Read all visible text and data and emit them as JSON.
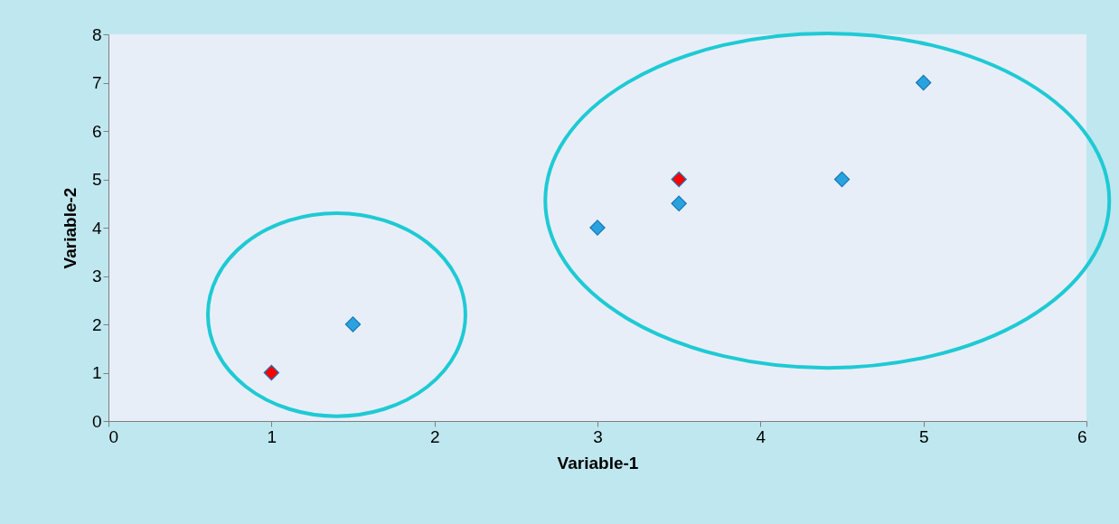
{
  "chart_data": {
    "type": "scatter",
    "xlabel": "Variable-1",
    "ylabel": "Variable-2",
    "xlim": [
      0,
      6
    ],
    "xticks": [
      0,
      1,
      2,
      3,
      4,
      5,
      6
    ],
    "ylim": [
      0,
      8
    ],
    "yticks": [
      0,
      1,
      2,
      3,
      4,
      5,
      6,
      7,
      8
    ],
    "marker": "diamond",
    "grid": false,
    "legend": false,
    "series": [
      {
        "color": "#29a3e0",
        "x": [
          1.5,
          3,
          3.5,
          4.5,
          5
        ],
        "values": [
          2,
          4,
          4.5,
          5,
          7
        ]
      },
      {
        "color": "#ff0000",
        "x": [
          1,
          3.5
        ],
        "values": [
          1,
          5
        ]
      }
    ]
  }
}
